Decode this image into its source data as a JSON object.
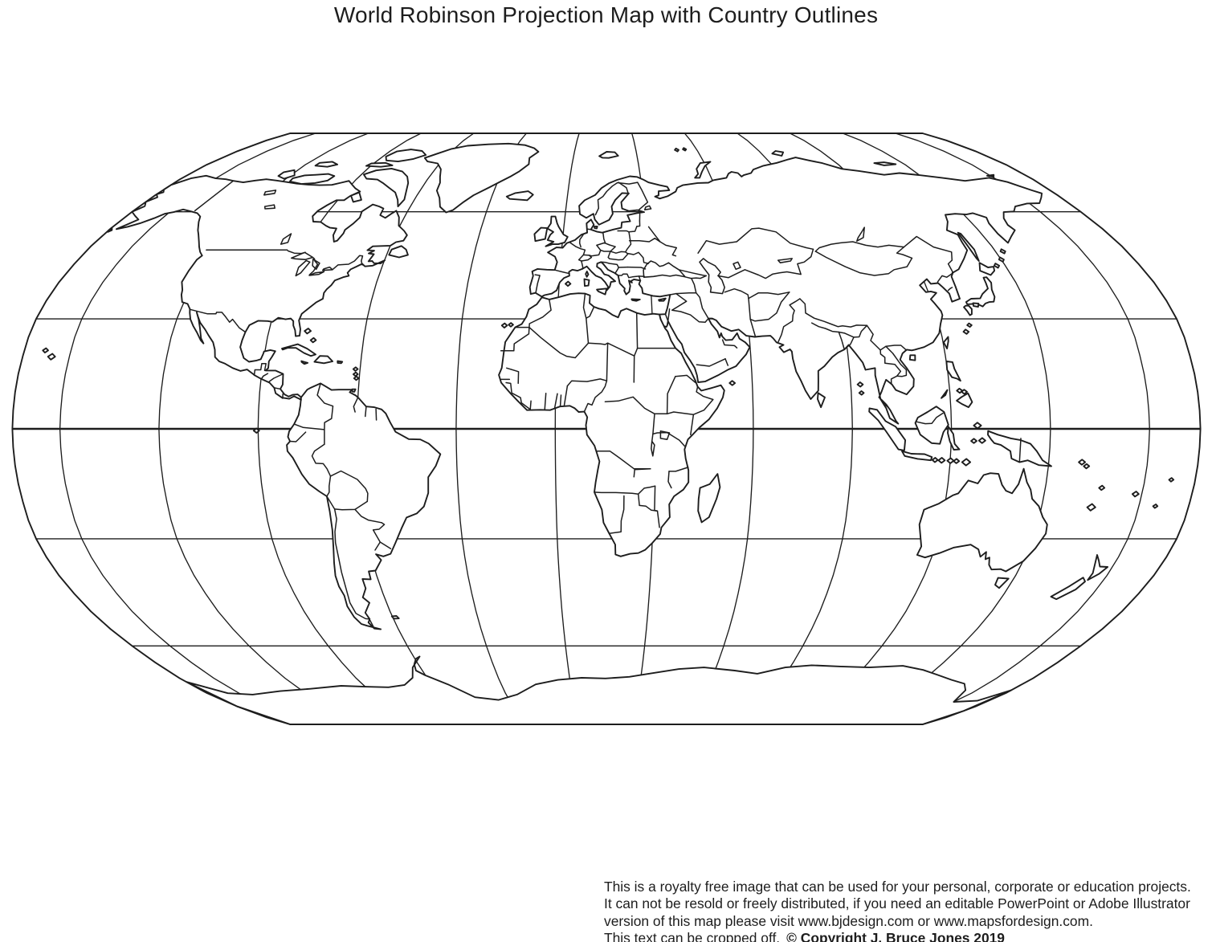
{
  "title": "World Robinson Projection Map with Country Outlines",
  "map": {
    "projection_name": "Robinson",
    "content": "blank world map with country outlines",
    "stroke_color": "#1d1d1d",
    "background_color": "#ffffff",
    "graticule": {
      "meridian_interval_deg": 30,
      "parallel_interval_deg": 30,
      "central_meridian_deg": 15.5
    }
  },
  "footer": {
    "line1": "This is a royalty free image that can be used for your personal, corporate or education projects.",
    "line2": "It can not be resold or freely distributed, if you need an editable PowerPoint or Adobe Illustrator",
    "line3": "version of this map please visit www.bjdesign.com or www.mapsfordesign.com.",
    "line4_plain": "This text can be cropped off.",
    "line4_bold": "© Copyright J. Bruce Jones 2019"
  }
}
